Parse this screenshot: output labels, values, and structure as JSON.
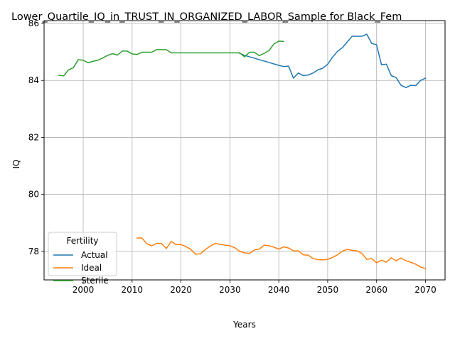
{
  "chart_data": {
    "type": "line",
    "title": "Lower_Quartile_IQ_in_TRUST_IN_ORGANIZED_LABOR_Sample for Black_Fem",
    "xlabel": "Years",
    "ylabel": "IQ",
    "xlim": [
      1992,
      2074
    ],
    "ylim": [
      77.0,
      86.1
    ],
    "xticks": [
      2000,
      2010,
      2020,
      2030,
      2040,
      2050,
      2060,
      2070
    ],
    "yticks": [
      78,
      80,
      82,
      84,
      86
    ],
    "grid": true,
    "legend": {
      "title": "Fertility",
      "position": "lower-left"
    },
    "series": [
      {
        "name": "Actual",
        "color": "#1f77b4",
        "x": [
          2032,
          2033,
          2034,
          2035,
          2036,
          2037,
          2038,
          2039,
          2040,
          2041,
          2042,
          2043,
          2044,
          2045,
          2046,
          2047,
          2048,
          2049,
          2050,
          2051,
          2052,
          2053,
          2054,
          2055,
          2056,
          2057,
          2058,
          2059,
          2060,
          2061,
          2062,
          2063,
          2064,
          2065,
          2066,
          2067,
          2068,
          2069,
          2070
        ],
        "y": [
          84.95,
          84.88,
          84.83,
          84.78,
          84.73,
          84.68,
          84.63,
          84.58,
          84.53,
          84.49,
          84.5,
          84.08,
          84.26,
          84.17,
          84.19,
          84.26,
          84.37,
          84.43,
          84.57,
          84.82,
          85.02,
          85.15,
          85.35,
          85.55,
          85.55,
          85.55,
          85.62,
          85.3,
          85.25,
          84.55,
          84.57,
          84.17,
          84.1,
          83.83,
          83.75,
          83.83,
          83.82,
          84.0,
          84.08
        ]
      },
      {
        "name": "Ideal",
        "color": "#ff7f0e",
        "x": [
          2011,
          2012,
          2013,
          2014,
          2015,
          2016,
          2017,
          2018,
          2019,
          2020,
          2021,
          2022,
          2023,
          2024,
          2025,
          2026,
          2027,
          2028,
          2029,
          2030,
          2031,
          2032,
          2033,
          2034,
          2035,
          2036,
          2037,
          2038,
          2039,
          2040,
          2041,
          2042,
          2043,
          2044,
          2045,
          2046,
          2047,
          2048,
          2049,
          2050,
          2051,
          2052,
          2053,
          2054,
          2055,
          2056,
          2057,
          2058,
          2059,
          2060,
          2061,
          2062,
          2063,
          2064,
          2065,
          2066,
          2067,
          2068,
          2069,
          2070
        ],
        "y": [
          78.47,
          78.47,
          78.27,
          78.2,
          78.28,
          78.28,
          78.1,
          78.35,
          78.24,
          78.24,
          78.17,
          78.07,
          77.9,
          77.92,
          78.07,
          78.19,
          78.28,
          78.25,
          78.22,
          78.2,
          78.13,
          78.0,
          77.95,
          77.93,
          78.05,
          78.08,
          78.22,
          78.2,
          78.15,
          78.08,
          78.16,
          78.12,
          78.02,
          78.02,
          77.88,
          77.87,
          77.75,
          77.71,
          77.7,
          77.72,
          77.79,
          77.88,
          78.01,
          78.07,
          78.04,
          78.02,
          77.93,
          77.72,
          77.75,
          77.6,
          77.69,
          77.62,
          77.78,
          77.67,
          77.77,
          77.67,
          77.62,
          77.55,
          77.45,
          77.4
        ]
      },
      {
        "name": "Sterile",
        "color": "#2ca02c",
        "x": [
          1995,
          1996,
          1997,
          1998,
          1999,
          2000,
          2001,
          2002,
          2003,
          2004,
          2005,
          2006,
          2007,
          2008,
          2009,
          2010,
          2011,
          2012,
          2013,
          2014,
          2015,
          2016,
          2017,
          2018,
          2019,
          2020,
          2021,
          2022,
          2023,
          2024,
          2025,
          2026,
          2027,
          2028,
          2029,
          2030,
          2031,
          2032,
          2033,
          2034,
          2035,
          2036,
          2037,
          2038,
          2039,
          2040,
          2041
        ],
        "y": [
          84.18,
          84.16,
          84.37,
          84.45,
          84.73,
          84.71,
          84.62,
          84.67,
          84.71,
          84.79,
          84.88,
          84.94,
          84.89,
          85.03,
          85.03,
          84.93,
          84.91,
          84.99,
          84.99,
          84.99,
          85.08,
          85.08,
          85.08,
          84.97,
          84.97,
          84.97,
          84.97,
          84.97,
          84.97,
          84.97,
          84.97,
          84.97,
          84.97,
          84.97,
          84.97,
          84.97,
          84.97,
          84.97,
          84.83,
          84.99,
          84.99,
          84.87,
          84.95,
          85.05,
          85.28,
          85.38,
          85.37
        ]
      }
    ]
  }
}
